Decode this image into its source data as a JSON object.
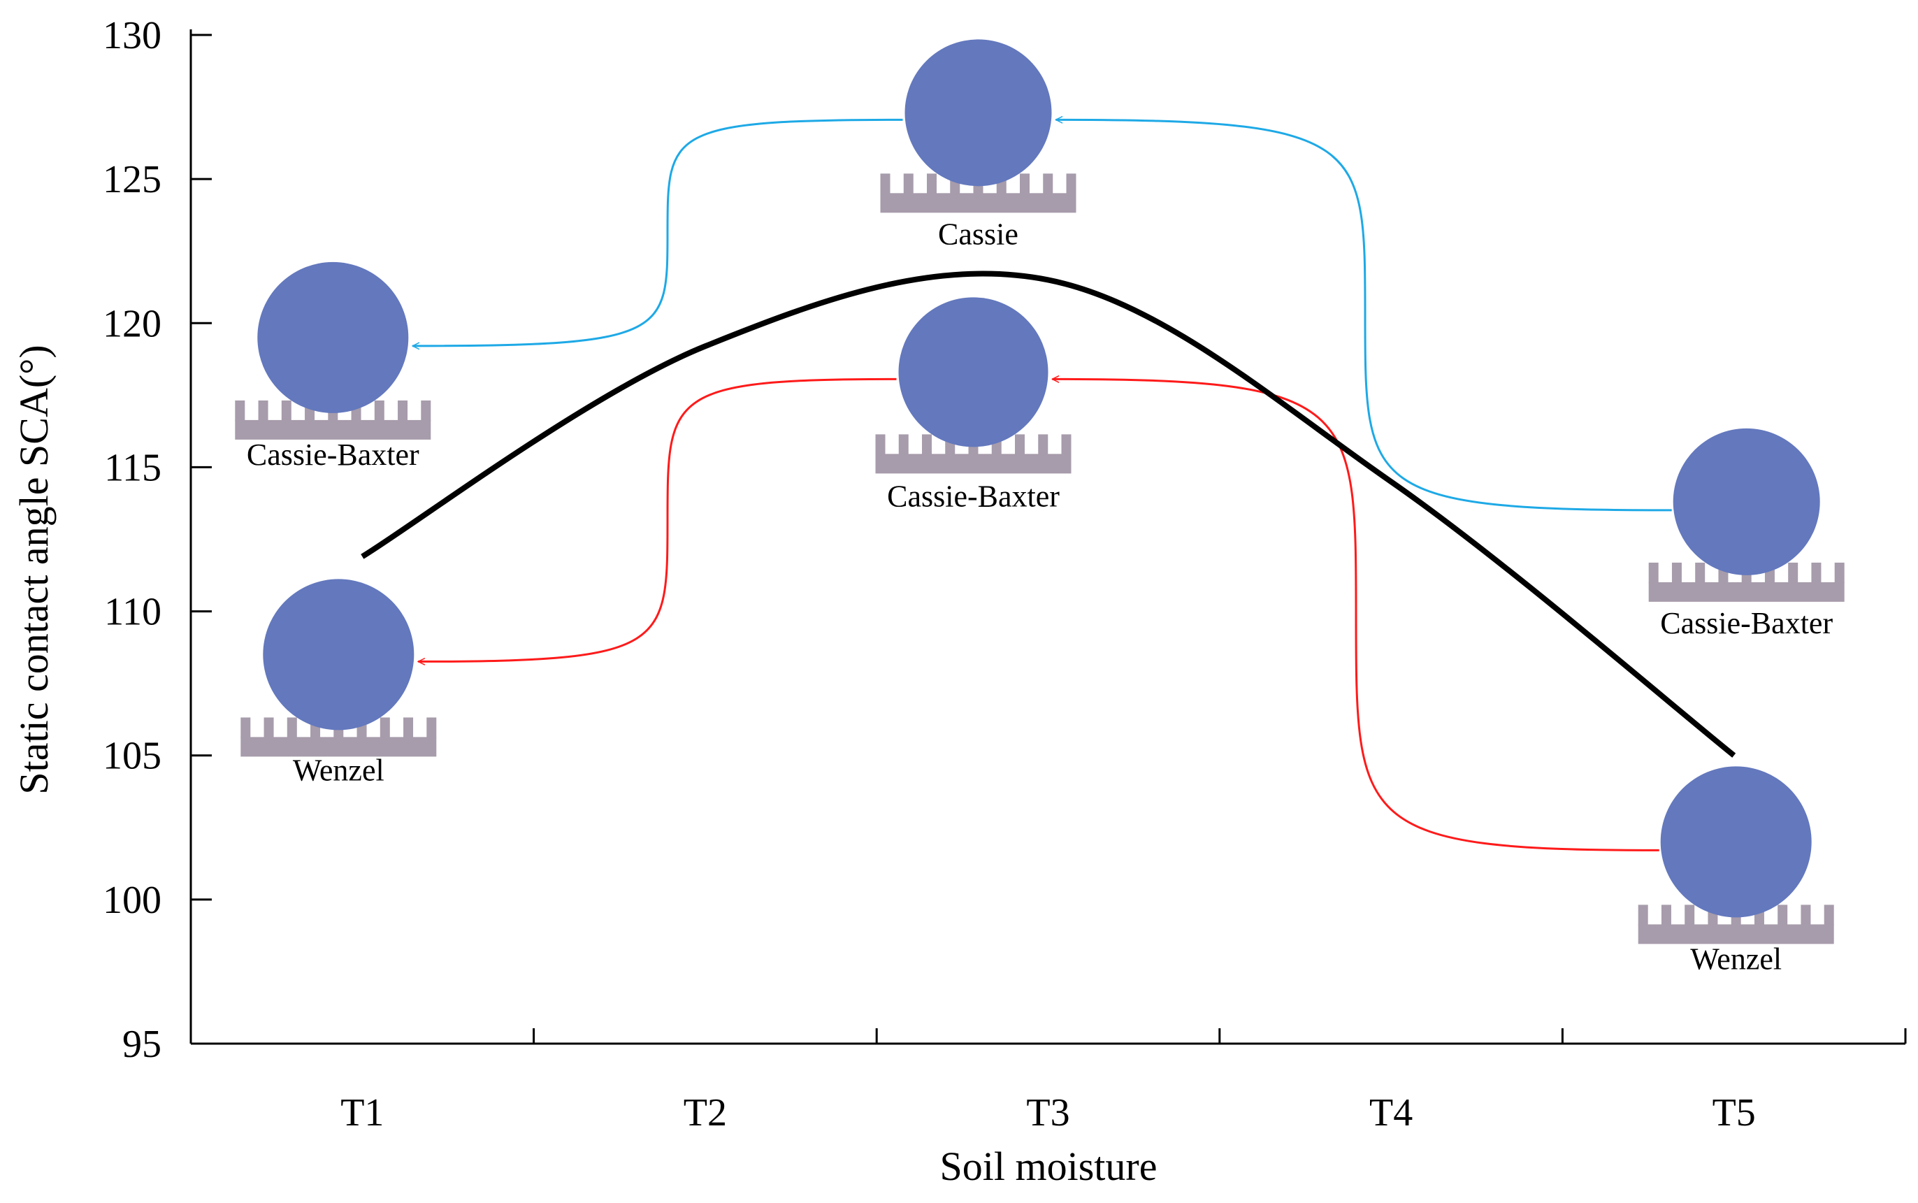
{
  "chart_data": {
    "type": "line",
    "title": "",
    "xlabel": "Soil moisture",
    "ylabel": "Static contact angle SCA(°)",
    "categories": [
      "T1",
      "T2",
      "T3",
      "T4",
      "T5"
    ],
    "series": [
      {
        "name": "SCA",
        "values": [
          111.9,
          119.2,
          121.5,
          114.5,
          105.0
        ]
      }
    ],
    "ylim": [
      95,
      130
    ],
    "yticks": [
      95,
      100,
      105,
      110,
      115,
      120,
      125,
      130
    ],
    "grid": false,
    "colors": {
      "line": "#000000",
      "droplet": "#6378BD",
      "surface": "#A79CAB",
      "arrow_blue": "#1EA9E6",
      "arrow_red": "#FF1A1A"
    },
    "annotations": [
      {
        "id": "t1-upper",
        "label": "Cassie-Baxter",
        "category": "T1",
        "sca": 119.5
      },
      {
        "id": "t1-lower",
        "label": "Wenzel",
        "category": "T1",
        "sca": 108.5
      },
      {
        "id": "t3-upper",
        "label": "Cassie",
        "category": "T3",
        "sca": 127.3
      },
      {
        "id": "t3-lower",
        "label": "Cassie-Baxter",
        "category": "T3",
        "sca": 118.3
      },
      {
        "id": "t5-upper",
        "label": "Cassie-Baxter",
        "category": "T5",
        "sca": 113.8
      },
      {
        "id": "t5-lower",
        "label": "Wenzel",
        "category": "T5",
        "sca": 102.0
      }
    ]
  }
}
